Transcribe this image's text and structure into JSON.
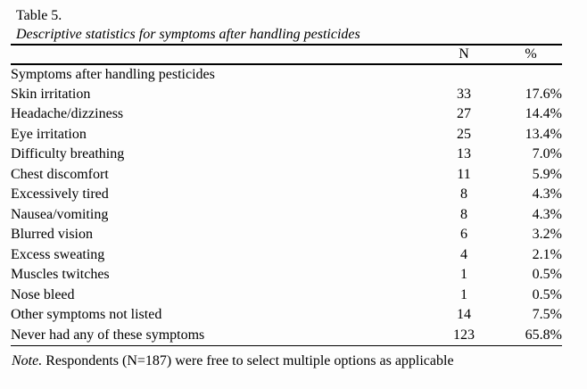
{
  "caption": {
    "number": "Table 5.",
    "title": "Descriptive statistics for symptoms after handling pesticides"
  },
  "table": {
    "columns": {
      "label": "",
      "n": "N",
      "pct": "%"
    },
    "group_header": "Symptoms after handling pesticides",
    "rows": [
      {
        "label": "Skin irritation",
        "n": "33",
        "pct": "17.6%"
      },
      {
        "label": "Headache/dizziness",
        "n": "27",
        "pct": "14.4%"
      },
      {
        "label": "Eye irritation",
        "n": "25",
        "pct": "13.4%"
      },
      {
        "label": "Difficulty breathing",
        "n": "13",
        "pct": "7.0%"
      },
      {
        "label": "Chest discomfort",
        "n": "11",
        "pct": "5.9%"
      },
      {
        "label": "Excessively tired",
        "n": "8",
        "pct": "4.3%"
      },
      {
        "label": "Nausea/vomiting",
        "n": "8",
        "pct": "4.3%"
      },
      {
        "label": "Blurred vision",
        "n": "6",
        "pct": "3.2%"
      },
      {
        "label": "Excess sweating",
        "n": "4",
        "pct": "2.1%"
      },
      {
        "label": "Muscles twitches",
        "n": "1",
        "pct": "0.5%"
      },
      {
        "label": "Nose bleed",
        "n": "1",
        "pct": "0.5%"
      },
      {
        "label": "Other symptoms not listed",
        "n": "14",
        "pct": "7.5%"
      },
      {
        "label": "Never had any of these symptoms",
        "n": "123",
        "pct": "65.8%"
      }
    ]
  },
  "note": {
    "prefix": "Note.",
    "text": "Respondents (N=187) were free to select multiple options as applicable"
  }
}
